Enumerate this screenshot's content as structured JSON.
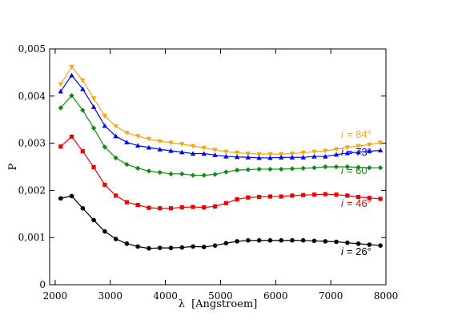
{
  "chart_data": {
    "type": "line",
    "xlabel_symbol": "λ",
    "xlabel_text": "[Angstroem]",
    "ylabel": "P",
    "xlim": [
      1900,
      8000
    ],
    "ylim": [
      0,
      0.005
    ],
    "x_ticks": [
      2000,
      3000,
      4000,
      5000,
      6000,
      7000,
      8000
    ],
    "y_ticks": [
      0,
      0.001,
      0.002,
      0.003,
      0.004,
      0.005
    ],
    "x_tick_labels": [
      "2000",
      "3000",
      "4000",
      "5000",
      "6000",
      "7000",
      "8000"
    ],
    "y_tick_labels": [
      "0",
      "0,001",
      "0,002",
      "0,003",
      "0,004",
      "0,005"
    ],
    "x": [
      2100,
      2300,
      2500,
      2700,
      2900,
      3100,
      3300,
      3500,
      3700,
      3900,
      4100,
      4300,
      4500,
      4700,
      4900,
      5100,
      5300,
      5500,
      5700,
      5900,
      6100,
      6300,
      6500,
      6700,
      6900,
      7100,
      7300,
      7500,
      7700,
      7900
    ],
    "series": [
      {
        "label_prefix": "i",
        "label_value": "= 84°",
        "color": "#f5a516",
        "marker": "triangle-down",
        "values": [
          0.00425,
          0.00462,
          0.00433,
          0.00395,
          0.00358,
          0.00336,
          0.00322,
          0.00315,
          0.00309,
          0.00304,
          0.00301,
          0.00298,
          0.00294,
          0.0029,
          0.00286,
          0.00282,
          0.0028,
          0.00278,
          0.00277,
          0.00277,
          0.00277,
          0.00278,
          0.0028,
          0.00282,
          0.00284,
          0.00287,
          0.00291,
          0.00294,
          0.00297,
          0.00301
        ]
      },
      {
        "label_prefix": "i",
        "label_value": "= 73°",
        "color": "#0000ff",
        "marker": "triangle-up",
        "values": [
          0.0041,
          0.00444,
          0.00415,
          0.00377,
          0.00337,
          0.00315,
          0.00302,
          0.00295,
          0.00291,
          0.00287,
          0.00284,
          0.00281,
          0.00278,
          0.00278,
          0.00275,
          0.00272,
          0.00271,
          0.0027,
          0.00269,
          0.00269,
          0.0027,
          0.0027,
          0.0027,
          0.00272,
          0.00272,
          0.00276,
          0.00279,
          0.00281,
          0.00283,
          0.00285
        ]
      },
      {
        "label_prefix": "i",
        "label_value": "= 60°",
        "color": "#108a10",
        "marker": "diamond",
        "values": [
          0.00375,
          0.00401,
          0.0037,
          0.00332,
          0.00292,
          0.00269,
          0.00255,
          0.00247,
          0.00241,
          0.00238,
          0.00235,
          0.00235,
          0.00232,
          0.00232,
          0.00234,
          0.00239,
          0.00243,
          0.00244,
          0.00245,
          0.00245,
          0.00245,
          0.00246,
          0.00247,
          0.00248,
          0.0025,
          0.0025,
          0.0025,
          0.00249,
          0.00248,
          0.00248
        ]
      },
      {
        "label_prefix": "i",
        "label_value": "= 46°",
        "color": "#ee0000",
        "marker": "square",
        "values": [
          0.00293,
          0.00314,
          0.00283,
          0.00249,
          0.00212,
          0.00189,
          0.00175,
          0.00169,
          0.00163,
          0.00162,
          0.00162,
          0.00164,
          0.00165,
          0.00164,
          0.00166,
          0.00173,
          0.00181,
          0.00185,
          0.00186,
          0.00187,
          0.00187,
          0.00189,
          0.0019,
          0.00191,
          0.00192,
          0.00191,
          0.00189,
          0.00186,
          0.00184,
          0.00182
        ]
      },
      {
        "label_prefix": "i",
        "label_value": "= 26°",
        "color": "#000000",
        "marker": "circle",
        "values": [
          0.00183,
          0.00188,
          0.00162,
          0.00137,
          0.00113,
          0.00097,
          0.00087,
          0.00081,
          0.00077,
          0.00078,
          0.00078,
          0.00079,
          0.00081,
          0.0008,
          0.00083,
          0.00088,
          0.00092,
          0.00094,
          0.00094,
          0.00094,
          0.00094,
          0.00094,
          0.00094,
          0.00093,
          0.00092,
          0.00091,
          0.00089,
          0.00087,
          0.00085,
          0.00083
        ]
      }
    ]
  }
}
